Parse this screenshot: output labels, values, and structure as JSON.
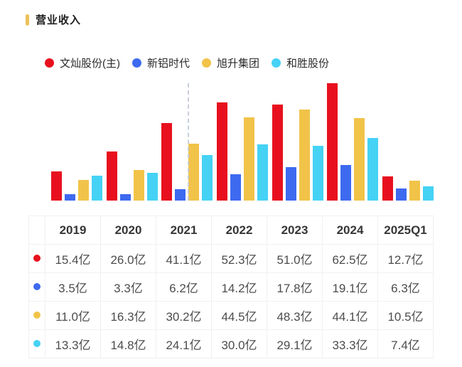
{
  "title": "营业收入",
  "chart_data": {
    "type": "bar",
    "title": "营业收入",
    "unit": "亿",
    "categories": [
      "2019",
      "2020",
      "2021",
      "2022",
      "2023",
      "2024",
      "2025Q1"
    ],
    "ylim": [
      0,
      62.5
    ],
    "grid": false,
    "legend_position": "top",
    "divider": "dashed vertical line inside 2021 group, before 旭升集团 bar",
    "series": [
      {
        "name": "文灿股份(主)",
        "color": "#e8101e",
        "values": [
          15.4,
          26.0,
          41.1,
          52.3,
          51.0,
          62.5,
          12.7
        ]
      },
      {
        "name": "新铝时代",
        "color": "#3e6af0",
        "values": [
          3.5,
          3.3,
          6.2,
          14.2,
          17.8,
          19.1,
          6.3
        ]
      },
      {
        "name": "旭升集团",
        "color": "#f1c349",
        "values": [
          11.0,
          16.3,
          30.2,
          44.5,
          48.3,
          44.1,
          10.5
        ]
      },
      {
        "name": "和胜股份",
        "color": "#45d2f5",
        "values": [
          13.3,
          14.8,
          24.1,
          30.0,
          29.1,
          33.3,
          7.4
        ]
      }
    ]
  },
  "table": {
    "corner_label": "",
    "rows": [
      {
        "series": "文灿股份(主)",
        "color": "#e8101e",
        "cells": [
          "15.4亿",
          "26.0亿",
          "41.1亿",
          "52.3亿",
          "51.0亿",
          "62.5亿",
          "12.7亿"
        ]
      },
      {
        "series": "新铝时代",
        "color": "#3e6af0",
        "cells": [
          "3.5亿",
          "3.3亿",
          "6.2亿",
          "14.2亿",
          "17.8亿",
          "19.1亿",
          "6.3亿"
        ]
      },
      {
        "series": "旭升集团",
        "color": "#f1c349",
        "cells": [
          "11.0亿",
          "16.3亿",
          "30.2亿",
          "44.5亿",
          "48.3亿",
          "44.1亿",
          "10.5亿"
        ]
      },
      {
        "series": "和胜股份",
        "color": "#45d2f5",
        "cells": [
          "13.3亿",
          "14.8亿",
          "24.1亿",
          "30.0亿",
          "29.1亿",
          "33.3亿",
          "7.4亿"
        ]
      }
    ]
  },
  "colors": {
    "title_accent": "#ecc158",
    "divider_line": "#c9cfd8",
    "table_border": "#f0f0f0",
    "header_text": "#363636",
    "value_text": "#4c4c4c"
  }
}
